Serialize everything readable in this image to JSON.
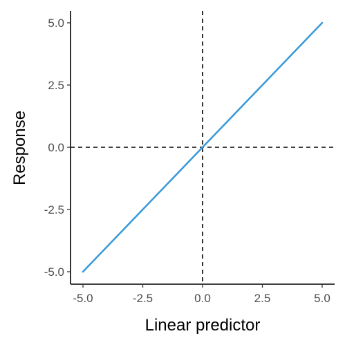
{
  "chart_data": {
    "type": "line",
    "xlabel": "Linear predictor",
    "ylabel": "Response",
    "xlim": [
      -5.0,
      5.0
    ],
    "ylim": [
      -5.0,
      5.0
    ],
    "x_ticks": [
      -5.0,
      -2.5,
      0.0,
      2.5,
      5.0
    ],
    "y_ticks": [
      -5.0,
      -2.5,
      0.0,
      2.5,
      5.0
    ],
    "x_tick_labels": [
      "-5.0",
      "-2.5",
      "0.0",
      "2.5",
      "5.0"
    ],
    "y_tick_labels": [
      "-5.0",
      "-2.5",
      "0.0",
      "2.5",
      "5.0"
    ],
    "series": [
      {
        "x": [
          -5.0,
          -4.5,
          -4.0,
          -3.5,
          -3.0,
          -2.5,
          -2.0,
          -1.5,
          -1.0,
          -0.5,
          0.0,
          0.5,
          1.0,
          1.5,
          2.0,
          2.5,
          3.0,
          3.5,
          4.0,
          4.5,
          5.0
        ],
        "y": [
          -5.0,
          -4.5,
          -4.0,
          -3.5,
          -3.0,
          -2.5,
          -2.0,
          -1.5,
          -1.0,
          -0.5,
          0.0,
          0.5,
          1.0,
          1.5,
          2.0,
          2.5,
          3.0,
          3.5,
          4.0,
          4.5,
          5.0
        ],
        "color": "#3a9ad9"
      }
    ],
    "reference_lines": [
      {
        "orientation": "vertical",
        "value": 0.0,
        "style": "dashed"
      },
      {
        "orientation": "horizontal",
        "value": 0.0,
        "style": "dashed"
      }
    ],
    "grid": false,
    "legend": "none"
  }
}
